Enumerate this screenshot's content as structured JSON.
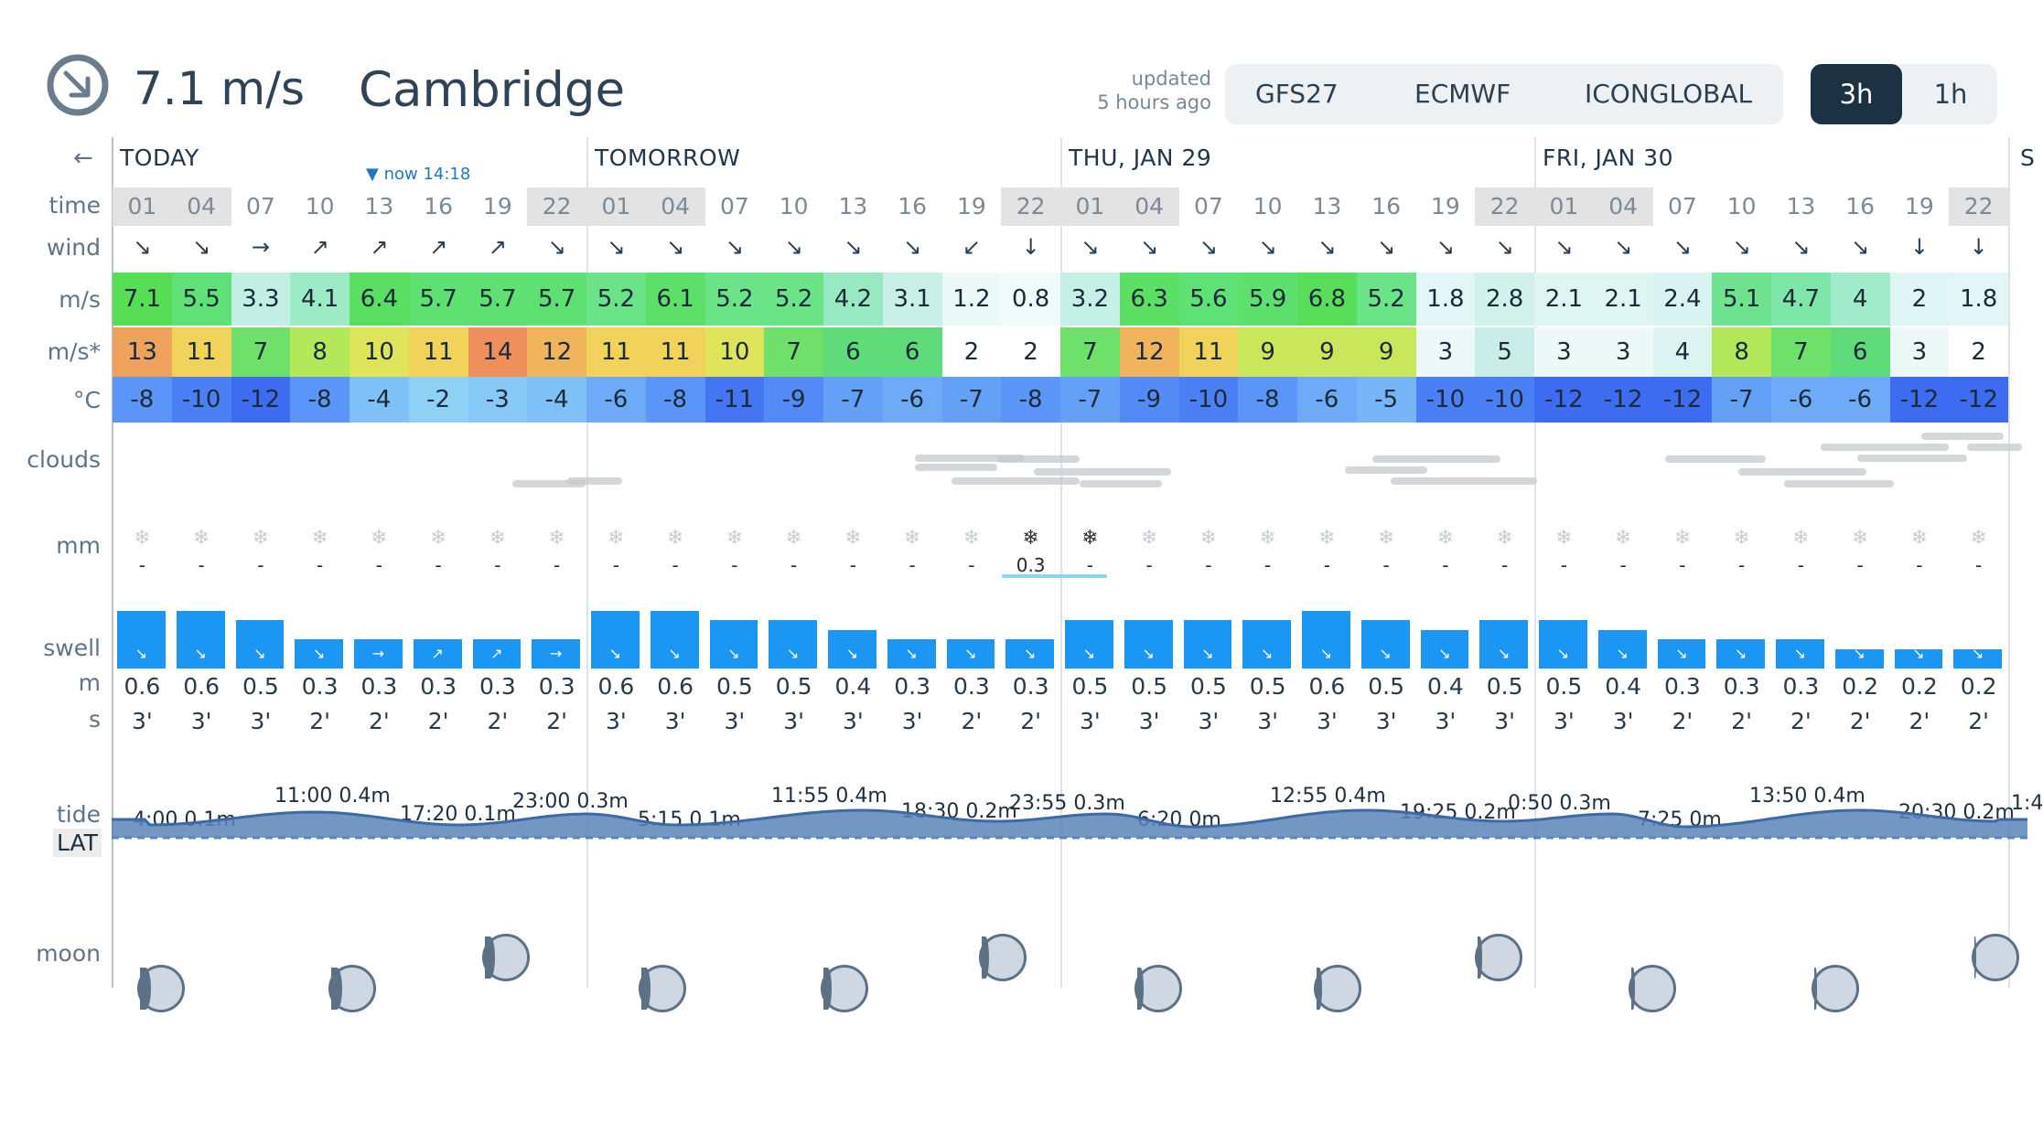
{
  "header": {
    "current_wind": "7.1 m/s",
    "location": "Cambridge",
    "updated_line1": "updated",
    "updated_line2": "5 hours ago",
    "models": [
      "GFS27",
      "ECMWF",
      "ICONGLOBAL"
    ],
    "modes": [
      "3h",
      "1h"
    ],
    "active_mode": "3h",
    "icon": "wind-compass-icon"
  },
  "row_labels": {
    "back": "←",
    "time": "time",
    "wind": "wind",
    "speed": "m/s",
    "gust": "m/s*",
    "temp": "°C",
    "clouds": "clouds",
    "precip": "mm",
    "swell": "swell",
    "swell_height": "m",
    "swell_period": "s",
    "tide": "tide",
    "lat": "LAT",
    "moon": "moon"
  },
  "now_marker": "now 14:18",
  "days": [
    "TODAY",
    "TOMORROW",
    "THU, JAN 29",
    "FRI, JAN 30",
    "S"
  ],
  "times": [
    "01",
    "04",
    "07",
    "10",
    "13",
    "16",
    "19",
    "22",
    "01",
    "04",
    "07",
    "10",
    "13",
    "16",
    "19",
    "22",
    "01",
    "04",
    "07",
    "10",
    "13",
    "16",
    "19",
    "22",
    "01",
    "04",
    "07",
    "10",
    "13",
    "16",
    "19",
    "22"
  ],
  "wind_arrows": [
    "↘",
    "↘",
    "→",
    "↗",
    "↗",
    "↗",
    "↗",
    "↘",
    "↘",
    "↘",
    "↘",
    "↘",
    "↘",
    "↘",
    "↙",
    "↓",
    "↘",
    "↘",
    "↘",
    "↘",
    "↘",
    "↘",
    "↘",
    "↘",
    "↘",
    "↘",
    "↘",
    "↘",
    "↘",
    "↘",
    "↓",
    "↓"
  ],
  "wind_speed": [
    "7.1",
    "5.5",
    "3.3",
    "4.1",
    "6.4",
    "5.7",
    "5.7",
    "5.7",
    "5.2",
    "6.1",
    "5.2",
    "5.2",
    "4.2",
    "3.1",
    "1.2",
    "0.8",
    "3.2",
    "6.3",
    "5.6",
    "5.9",
    "6.8",
    "5.2",
    "1.8",
    "2.8",
    "2.1",
    "2.1",
    "2.4",
    "5.1",
    "4.7",
    "4",
    "2",
    "1.8"
  ],
  "wind_gust": [
    "13",
    "11",
    "7",
    "8",
    "10",
    "11",
    "14",
    "12",
    "11",
    "11",
    "10",
    "7",
    "6",
    "6",
    "2",
    "2",
    "7",
    "12",
    "11",
    "9",
    "9",
    "9",
    "3",
    "5",
    "3",
    "3",
    "4",
    "8",
    "7",
    "6",
    "3",
    "2"
  ],
  "temperature": [
    "-8",
    "-10",
    "-12",
    "-8",
    "-4",
    "-2",
    "-3",
    "-4",
    "-6",
    "-8",
    "-11",
    "-9",
    "-7",
    "-6",
    "-7",
    "-8",
    "-7",
    "-9",
    "-10",
    "-8",
    "-6",
    "-5",
    "-10",
    "-10",
    "-12",
    "-12",
    "-12",
    "-7",
    "-6",
    "-6",
    "-12",
    "-12"
  ],
  "precip": [
    "-",
    "-",
    "-",
    "-",
    "-",
    "-",
    "-",
    "-",
    "-",
    "-",
    "-",
    "-",
    "-",
    "-",
    "-",
    "0.3",
    "-",
    "-",
    "-",
    "-",
    "-",
    "-",
    "-",
    "-",
    "-",
    "-",
    "-",
    "-",
    "-",
    "-",
    "-",
    "-"
  ],
  "snow_symbol": "❄",
  "swell_arrows": [
    "↘",
    "↘",
    "↘",
    "↘",
    "→",
    "↗",
    "↗",
    "→",
    "↘",
    "↘",
    "↘",
    "↘",
    "↘",
    "↘",
    "↘",
    "↘",
    "↘",
    "↘",
    "↘",
    "↘",
    "↘",
    "↘",
    "↘",
    "↘",
    "↘",
    "↘",
    "↘",
    "↘",
    "↘",
    "↘",
    "↘",
    "↘"
  ],
  "swell_height": [
    "0.6",
    "0.6",
    "0.5",
    "0.3",
    "0.3",
    "0.3",
    "0.3",
    "0.3",
    "0.6",
    "0.6",
    "0.5",
    "0.5",
    "0.4",
    "0.3",
    "0.3",
    "0.3",
    "0.5",
    "0.5",
    "0.5",
    "0.5",
    "0.6",
    "0.5",
    "0.4",
    "0.5",
    "0.5",
    "0.4",
    "0.3",
    "0.3",
    "0.3",
    "0.2",
    "0.2",
    "0.2"
  ],
  "swell_period": [
    "3'",
    "3'",
    "3'",
    "2'",
    "2'",
    "2'",
    "2'",
    "2'",
    "3'",
    "3'",
    "3'",
    "3'",
    "3'",
    "3'",
    "2'",
    "2'",
    "3'",
    "3'",
    "3'",
    "3'",
    "3'",
    "3'",
    "3'",
    "3'",
    "3'",
    "3'",
    "2'",
    "2'",
    "2'",
    "2'",
    "2'",
    "2'"
  ],
  "tides": [
    "4:00 0.1m",
    "11:00 0.4m",
    "17:20 0.1m",
    "23:00 0.3m",
    "5:15 0.1m",
    "11:55 0.4m",
    "18:30 0.2m",
    "23:55 0.3m",
    "6:20 0m",
    "12:55 0.4m",
    "19:25 0.2m",
    "0:50 0.3m",
    "7:25 0m",
    "13:50 0.4m",
    "20:30 0.2m",
    "1:4"
  ],
  "moon_phases": [
    0.48,
    0.5,
    0.52,
    0.57,
    0.6,
    0.65,
    0.7,
    0.73,
    0.77,
    0.82,
    0.86,
    0.9
  ],
  "colors": {
    "accent_dark": "#1c3142",
    "swell_blue": "#1b96f3",
    "now_blue": "#1f78c1",
    "tide_fill": "#5b84b8"
  }
}
